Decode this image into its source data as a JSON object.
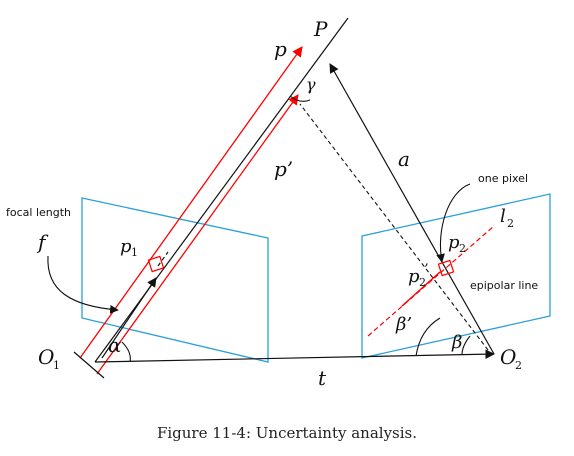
{
  "labels": {
    "P": "P",
    "p": "p",
    "p_prime": "p’",
    "gamma": "γ",
    "a": "a",
    "one_pixel": "one pixel",
    "focal_length": "focal length",
    "f": "f",
    "p1_main": "p",
    "p1_sub": "1",
    "p2_main": "p",
    "p2_sub": "2",
    "p2p_main": "p",
    "p2p_sub": "2",
    "p2p_prime": "’",
    "l2_main": "l",
    "l2_sub": "2",
    "epipolar_line": "epipolar line",
    "beta_prime": "β’",
    "beta": "β",
    "alpha": "α",
    "O1_main": "O",
    "O1_sub": "1",
    "O2_main": "O",
    "O2_sub": "2",
    "t": "t"
  },
  "caption": "Figure 11-4: Uncertainty analysis.",
  "colors": {
    "ray": "#ff0000",
    "plane": "#2aa0d8",
    "ink": "#111111"
  }
}
